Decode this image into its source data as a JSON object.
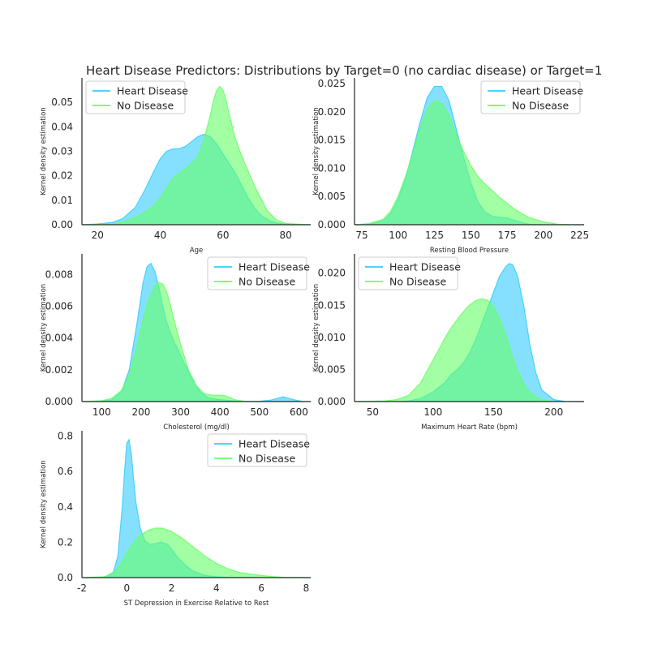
{
  "title": "Heart Disease Predictors: Distributions by Target=0 (no cardiac disease) or Target=1",
  "colors": {
    "heart_disease": "#33ccff",
    "no_disease": "#66ff66",
    "overlap": "#58e8b2",
    "axis": "#262626"
  },
  "chart_data": [
    {
      "type": "area",
      "xlabel": "Age",
      "ylabel": "Kernel density estimation",
      "xlim": [
        15,
        88
      ],
      "ylim": [
        0,
        0.06
      ],
      "xticks": [
        20,
        40,
        60,
        80
      ],
      "yticks": [
        0.0,
        0.01,
        0.02,
        0.03,
        0.04,
        0.05
      ],
      "ytick_labels": [
        "0.00",
        "0.01",
        "0.02",
        "0.03",
        "0.04",
        "0.05"
      ],
      "legend": "upper-left",
      "series": [
        {
          "name": "Heart Disease",
          "x": [
            15,
            20,
            25,
            28,
            32,
            35,
            38,
            40,
            42,
            44,
            46,
            48,
            50,
            52,
            54,
            56,
            58,
            60,
            62,
            64,
            66,
            68,
            70,
            72,
            75,
            78,
            82,
            88
          ],
          "values": [
            0,
            0.0003,
            0.001,
            0.0025,
            0.007,
            0.014,
            0.022,
            0.027,
            0.03,
            0.031,
            0.031,
            0.032,
            0.034,
            0.036,
            0.037,
            0.036,
            0.033,
            0.029,
            0.025,
            0.021,
            0.016,
            0.011,
            0.007,
            0.004,
            0.0015,
            0.0005,
            0.0001,
            0
          ]
        },
        {
          "name": "No Disease",
          "x": [
            15,
            20,
            25,
            28,
            32,
            35,
            38,
            40,
            42,
            44,
            46,
            48,
            50,
            52,
            54,
            56,
            57,
            58,
            59,
            60,
            61,
            62,
            63,
            64,
            66,
            68,
            70,
            72,
            74,
            77,
            80,
            88
          ],
          "values": [
            0,
            0.0001,
            0.0004,
            0.001,
            0.003,
            0.005,
            0.008,
            0.011,
            0.015,
            0.019,
            0.021,
            0.023,
            0.025,
            0.028,
            0.035,
            0.045,
            0.051,
            0.055,
            0.0565,
            0.055,
            0.051,
            0.045,
            0.04,
            0.035,
            0.028,
            0.022,
            0.016,
            0.011,
            0.006,
            0.002,
            0.0005,
            0
          ]
        }
      ]
    },
    {
      "type": "area",
      "xlabel": "Resting Blood Pressure",
      "ylabel": "Kernel density estimation",
      "xlim": [
        70,
        228
      ],
      "ylim": [
        0,
        0.026
      ],
      "xticks": [
        75,
        100,
        125,
        150,
        175,
        200,
        225
      ],
      "yticks": [
        0.0,
        0.005,
        0.01,
        0.015,
        0.02,
        0.025
      ],
      "ytick_labels": [
        "0.000",
        "0.005",
        "0.010",
        "0.015",
        "0.020",
        "0.025"
      ],
      "legend": "upper-right",
      "series": [
        {
          "name": "Heart Disease",
          "x": [
            70,
            80,
            90,
            95,
            100,
            105,
            110,
            115,
            120,
            125,
            130,
            135,
            140,
            145,
            150,
            155,
            160,
            165,
            170,
            175,
            180,
            185,
            190,
            200,
            210,
            228
          ],
          "values": [
            0,
            0.0001,
            0.0007,
            0.002,
            0.0045,
            0.008,
            0.013,
            0.018,
            0.0225,
            0.0245,
            0.0245,
            0.022,
            0.017,
            0.012,
            0.0075,
            0.004,
            0.0022,
            0.0015,
            0.0013,
            0.0012,
            0.0008,
            0.0004,
            0.0001,
            0,
            0,
            0
          ]
        },
        {
          "name": "No Disease",
          "x": [
            70,
            80,
            90,
            95,
            100,
            105,
            110,
            115,
            120,
            125,
            130,
            135,
            140,
            145,
            150,
            155,
            160,
            165,
            170,
            175,
            180,
            185,
            190,
            195,
            200,
            210,
            220,
            228
          ],
          "values": [
            0,
            0.0002,
            0.001,
            0.0025,
            0.005,
            0.0085,
            0.0125,
            0.017,
            0.0205,
            0.022,
            0.0215,
            0.0195,
            0.016,
            0.013,
            0.0105,
            0.0085,
            0.0072,
            0.006,
            0.0048,
            0.0038,
            0.0028,
            0.002,
            0.0013,
            0.0009,
            0.0005,
            0.0001,
            0,
            0
          ]
        }
      ]
    },
    {
      "type": "area",
      "xlabel": "Cholesterol (mg/dl)",
      "ylabel": "Kernel density estimation",
      "xlim": [
        50,
        630
      ],
      "ylim": [
        0,
        0.0093
      ],
      "xticks": [
        100,
        200,
        300,
        400,
        500,
        600
      ],
      "yticks": [
        0.0,
        0.002,
        0.004,
        0.006,
        0.008
      ],
      "ytick_labels": [
        "0.000",
        "0.002",
        "0.004",
        "0.006",
        "0.008"
      ],
      "legend": "upper-right",
      "series": [
        {
          "name": "Heart Disease",
          "x": [
            50,
            100,
            125,
            150,
            170,
            190,
            205,
            215,
            225,
            235,
            245,
            255,
            265,
            275,
            285,
            295,
            310,
            330,
            350,
            370,
            390,
            410,
            430,
            460,
            500,
            530,
            545,
            560,
            575,
            590,
            610,
            630
          ],
          "values": [
            0,
            3e-05,
            0.0001,
            0.0006,
            0.002,
            0.005,
            0.0075,
            0.0085,
            0.0087,
            0.0082,
            0.0072,
            0.006,
            0.005,
            0.0043,
            0.0037,
            0.0032,
            0.0024,
            0.0014,
            0.0006,
            0.00025,
            0.00015,
            0.0001,
            5e-05,
            1e-05,
            2e-05,
            0.0001,
            0.0002,
            0.0003,
            0.0002,
            0.0001,
            1e-05,
            0
          ]
        },
        {
          "name": "No Disease",
          "x": [
            50,
            100,
            125,
            150,
            170,
            190,
            205,
            220,
            235,
            245,
            255,
            265,
            275,
            285,
            300,
            320,
            340,
            360,
            380,
            400,
            410,
            420,
            440,
            470,
            630
          ],
          "values": [
            0,
            5e-05,
            0.0002,
            0.0007,
            0.0017,
            0.0035,
            0.0052,
            0.0065,
            0.0073,
            0.0075,
            0.0074,
            0.0069,
            0.006,
            0.005,
            0.0036,
            0.002,
            0.001,
            0.0005,
            0.0004,
            0.0004,
            0.0004,
            0.0003,
            0.0001,
            0,
            0
          ]
        }
      ]
    },
    {
      "type": "area",
      "xlabel": "Maximum Heart Rate (bpm)",
      "ylabel": "Kernel density estimation",
      "xlim": [
        35,
        225
      ],
      "ylim": [
        0,
        0.023
      ],
      "xticks": [
        50,
        100,
        150,
        200
      ],
      "yticks": [
        0.0,
        0.005,
        0.01,
        0.015,
        0.02
      ],
      "ytick_labels": [
        "0.000",
        "0.005",
        "0.010",
        "0.015",
        "0.020"
      ],
      "legend": "upper-left",
      "series": [
        {
          "name": "Heart Disease",
          "x": [
            35,
            70,
            80,
            90,
            100,
            110,
            115,
            120,
            125,
            130,
            135,
            140,
            145,
            150,
            155,
            160,
            163,
            166,
            170,
            175,
            180,
            185,
            190,
            200,
            210,
            225
          ],
          "values": [
            0,
            0,
            0.0001,
            0.0005,
            0.0015,
            0.003,
            0.0042,
            0.005,
            0.006,
            0.0075,
            0.0095,
            0.012,
            0.0145,
            0.017,
            0.0195,
            0.021,
            0.0215,
            0.0213,
            0.0195,
            0.015,
            0.009,
            0.0045,
            0.0018,
            0.0003,
            0,
            0
          ]
        },
        {
          "name": "No Disease",
          "x": [
            35,
            60,
            70,
            80,
            90,
            100,
            105,
            110,
            115,
            120,
            125,
            130,
            135,
            140,
            145,
            150,
            155,
            160,
            165,
            170,
            175,
            180,
            185,
            190,
            195,
            200,
            225
          ],
          "values": [
            0,
            0.0001,
            0.0003,
            0.001,
            0.003,
            0.0065,
            0.0082,
            0.01,
            0.0115,
            0.0128,
            0.014,
            0.015,
            0.0157,
            0.016,
            0.0158,
            0.0148,
            0.013,
            0.0105,
            0.0075,
            0.0048,
            0.0028,
            0.0015,
            0.0007,
            0.0003,
            0.0001,
            0,
            0
          ]
        }
      ]
    },
    {
      "type": "area",
      "xlabel": "ST Depression in Exercise Relative to Rest",
      "ylabel": "Kernel density estimation",
      "xlim": [
        -2,
        8.2
      ],
      "ylim": [
        0,
        0.83
      ],
      "xticks": [
        -2,
        0,
        2,
        4,
        6,
        8
      ],
      "yticks": [
        0.0,
        0.2,
        0.4,
        0.6,
        0.8
      ],
      "ytick_labels": [
        "0.0",
        "0.2",
        "0.4",
        "0.6",
        "0.8"
      ],
      "legend": "upper-right",
      "series": [
        {
          "name": "Heart Disease",
          "x": [
            -2,
            -1,
            -0.6,
            -0.4,
            -0.2,
            -0.1,
            0,
            0.1,
            0.2,
            0.3,
            0.4,
            0.6,
            0.8,
            1.0,
            1.2,
            1.5,
            1.8,
            2.0,
            2.3,
            2.7,
            3.0,
            3.5,
            4.0,
            4.5,
            5.0,
            5.5,
            8.2
          ],
          "values": [
            0,
            0.002,
            0.03,
            0.12,
            0.4,
            0.6,
            0.76,
            0.78,
            0.7,
            0.56,
            0.43,
            0.28,
            0.21,
            0.19,
            0.19,
            0.2,
            0.19,
            0.16,
            0.11,
            0.06,
            0.035,
            0.012,
            0.005,
            0.002,
            0.001,
            0,
            0
          ]
        },
        {
          "name": "No Disease",
          "x": [
            -2,
            -1,
            -0.6,
            -0.3,
            0,
            0.3,
            0.6,
            1.0,
            1.3,
            1.6,
            2.0,
            2.5,
            3.0,
            3.5,
            4.0,
            4.5,
            5.0,
            5.5,
            6.0,
            6.5,
            7.0,
            8.2
          ],
          "values": [
            0,
            0.005,
            0.025,
            0.07,
            0.14,
            0.2,
            0.24,
            0.27,
            0.28,
            0.28,
            0.26,
            0.22,
            0.17,
            0.12,
            0.08,
            0.05,
            0.03,
            0.02,
            0.012,
            0.006,
            0.002,
            0
          ]
        }
      ]
    }
  ]
}
